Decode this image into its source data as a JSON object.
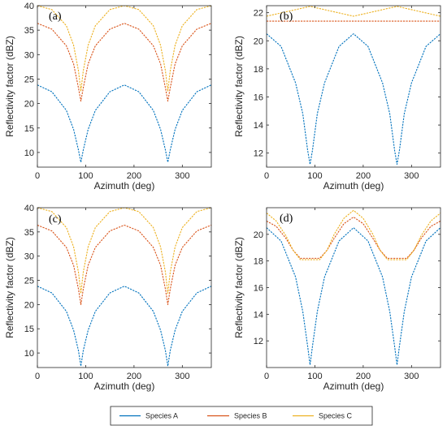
{
  "colors": {
    "species_a": "#0072BD",
    "species_b": "#D95319",
    "species_c": "#EDB120"
  },
  "legend": {
    "placement": "bottom",
    "entries": [
      {
        "label": "Species A",
        "color": "#0072BD"
      },
      {
        "label": "Species B",
        "color": "#D95319"
      },
      {
        "label": "Species C",
        "color": "#EDB120"
      }
    ]
  },
  "chart_data": [
    {
      "type": "line",
      "panel_label": "(a)",
      "xlabel": "Azimuth (deg)",
      "ylabel": "Reflectivity factor (dBZ)",
      "xlim": [
        0,
        360
      ],
      "ylim": [
        7,
        40
      ],
      "xticks": [
        0,
        100,
        200,
        300
      ],
      "yticks": [
        10,
        15,
        20,
        25,
        30,
        35,
        40
      ],
      "grid": false,
      "series": [
        {
          "name": "Species A",
          "color": "#0072BD",
          "x": [
            0,
            30,
            60,
            75,
            85,
            90,
            95,
            105,
            120,
            150,
            180,
            210,
            240,
            255,
            265,
            270,
            275,
            285,
            300,
            330,
            360
          ],
          "y": [
            23.8,
            22.4,
            18.6,
            14.7,
            10.5,
            8.0,
            10.5,
            14.7,
            18.6,
            22.4,
            23.8,
            22.4,
            18.6,
            14.7,
            10.5,
            8.0,
            10.5,
            14.7,
            18.6,
            22.4,
            23.8
          ]
        },
        {
          "name": "Species B",
          "color": "#D95319",
          "x": [
            0,
            30,
            60,
            75,
            85,
            90,
            95,
            105,
            120,
            150,
            180,
            210,
            240,
            255,
            265,
            270,
            275,
            285,
            300,
            330,
            360
          ],
          "y": [
            36.4,
            35.2,
            31.8,
            28.1,
            23.2,
            20.5,
            23.2,
            28.1,
            31.8,
            35.2,
            36.4,
            35.2,
            31.8,
            28.1,
            23.2,
            20.5,
            23.2,
            28.1,
            31.8,
            35.2,
            36.4
          ]
        },
        {
          "name": "Species C",
          "color": "#EDB120",
          "x": [
            0,
            30,
            60,
            75,
            85,
            90,
            95,
            105,
            120,
            150,
            180,
            210,
            240,
            255,
            265,
            270,
            275,
            285,
            300,
            330,
            360
          ],
          "y": [
            40.0,
            39.2,
            35.9,
            31.9,
            26.7,
            22.5,
            26.7,
            31.9,
            35.9,
            39.2,
            40.0,
            39.2,
            35.9,
            31.9,
            26.7,
            22.5,
            26.7,
            31.9,
            35.9,
            39.2,
            40.0
          ]
        }
      ]
    },
    {
      "type": "line",
      "panel_label": "(b)",
      "xlabel": "Azimuth (deg)",
      "ylabel": "Reflectivity factor (dBZ)",
      "xlim": [
        0,
        360
      ],
      "ylim": [
        11,
        22.5
      ],
      "xticks": [
        0,
        100,
        200,
        300
      ],
      "yticks": [
        12,
        14,
        16,
        18,
        20,
        22
      ],
      "grid": false,
      "series": [
        {
          "name": "Species A",
          "color": "#0072BD",
          "x": [
            0,
            30,
            60,
            75,
            85,
            90,
            95,
            105,
            120,
            150,
            180,
            210,
            240,
            255,
            265,
            270,
            275,
            285,
            300,
            330,
            360
          ],
          "y": [
            20.5,
            19.6,
            17.0,
            14.8,
            12.2,
            11.2,
            12.2,
            14.8,
            17.0,
            19.6,
            20.5,
            19.6,
            17.0,
            14.8,
            12.2,
            11.2,
            12.2,
            14.8,
            17.0,
            19.6,
            20.5
          ]
        },
        {
          "name": "Species B",
          "color": "#D95319",
          "x": [
            0,
            90,
            180,
            270,
            360
          ],
          "y": [
            21.4,
            21.4,
            21.4,
            21.4,
            21.4
          ]
        },
        {
          "name": "Species C",
          "color": "#EDB120",
          "x": [
            0,
            45,
            90,
            135,
            180,
            225,
            270,
            315,
            360
          ],
          "y": [
            21.75,
            22.1,
            22.45,
            22.1,
            21.75,
            22.1,
            22.45,
            22.1,
            21.75
          ]
        }
      ]
    },
    {
      "type": "line",
      "panel_label": "(c)",
      "xlabel": "Azimuth (deg)",
      "ylabel": "Reflectivity factor (dBZ)",
      "xlim": [
        0,
        360
      ],
      "ylim": [
        7,
        40
      ],
      "xticks": [
        0,
        100,
        200,
        300
      ],
      "yticks": [
        10,
        15,
        20,
        25,
        30,
        35,
        40
      ],
      "grid": false,
      "series": [
        {
          "name": "Species A",
          "color": "#0072BD",
          "x": [
            0,
            30,
            60,
            75,
            85,
            90,
            95,
            105,
            120,
            150,
            180,
            210,
            240,
            255,
            265,
            270,
            275,
            285,
            300,
            330,
            360
          ],
          "y": [
            23.8,
            22.4,
            18.6,
            14.7,
            10.5,
            7.3,
            10.5,
            14.7,
            18.6,
            22.4,
            23.8,
            22.4,
            18.6,
            14.7,
            10.5,
            7.3,
            10.5,
            14.7,
            18.6,
            22.4,
            23.8
          ]
        },
        {
          "name": "Species B",
          "color": "#D95319",
          "x": [
            0,
            30,
            60,
            75,
            85,
            90,
            95,
            105,
            120,
            150,
            180,
            210,
            240,
            255,
            265,
            270,
            275,
            285,
            300,
            330,
            360
          ],
          "y": [
            36.4,
            35.2,
            31.8,
            28.1,
            23.2,
            20.0,
            23.2,
            28.1,
            31.8,
            35.2,
            36.4,
            35.2,
            31.8,
            28.1,
            23.2,
            20.0,
            23.2,
            28.1,
            31.8,
            35.2,
            36.4
          ]
        },
        {
          "name": "Species C",
          "color": "#EDB120",
          "x": [
            0,
            30,
            60,
            75,
            85,
            90,
            95,
            105,
            120,
            150,
            180,
            210,
            240,
            255,
            265,
            270,
            275,
            285,
            300,
            330,
            360
          ],
          "y": [
            40.0,
            39.2,
            35.9,
            31.9,
            26.7,
            22.3,
            26.7,
            31.9,
            35.9,
            39.2,
            40.0,
            39.2,
            35.9,
            31.9,
            26.7,
            22.3,
            26.7,
            31.9,
            35.9,
            39.2,
            40.0
          ]
        }
      ]
    },
    {
      "type": "line",
      "panel_label": "(d)",
      "xlabel": "Azimuth (deg)",
      "ylabel": "Reflectivity factor (dBZ)",
      "xlim": [
        0,
        360
      ],
      "ylim": [
        10,
        22
      ],
      "xticks": [
        0,
        100,
        200,
        300
      ],
      "yticks": [
        12,
        14,
        16,
        18,
        20
      ],
      "grid": false,
      "series": [
        {
          "name": "Species A",
          "color": "#0072BD",
          "x": [
            0,
            30,
            60,
            75,
            85,
            90,
            95,
            105,
            120,
            150,
            180,
            210,
            240,
            255,
            265,
            270,
            275,
            285,
            300,
            330,
            360
          ],
          "y": [
            20.5,
            19.5,
            16.8,
            14.2,
            11.6,
            10.2,
            11.6,
            14.2,
            16.8,
            19.5,
            20.5,
            19.5,
            16.8,
            14.2,
            11.6,
            10.2,
            11.6,
            14.2,
            16.8,
            19.5,
            20.5
          ]
        },
        {
          "name": "Species B",
          "color": "#D95319",
          "x": [
            0,
            20,
            40,
            55,
            70,
            110,
            125,
            140,
            160,
            180,
            200,
            220,
            235,
            250,
            290,
            305,
            320,
            340,
            360
          ],
          "y": [
            21.0,
            20.6,
            19.7,
            18.8,
            18.2,
            18.2,
            18.8,
            19.7,
            20.8,
            21.3,
            20.8,
            19.7,
            18.8,
            18.2,
            18.2,
            18.8,
            19.7,
            20.6,
            21.0
          ]
        },
        {
          "name": "Species C",
          "color": "#EDB120",
          "x": [
            0,
            20,
            40,
            55,
            70,
            110,
            125,
            140,
            160,
            180,
            200,
            220,
            235,
            250,
            290,
            305,
            320,
            340,
            360
          ],
          "y": [
            21.6,
            21.0,
            19.9,
            18.8,
            18.1,
            18.1,
            18.8,
            20.0,
            21.2,
            21.8,
            21.2,
            20.0,
            18.8,
            18.1,
            18.1,
            18.8,
            19.9,
            21.0,
            21.6
          ]
        }
      ]
    }
  ]
}
